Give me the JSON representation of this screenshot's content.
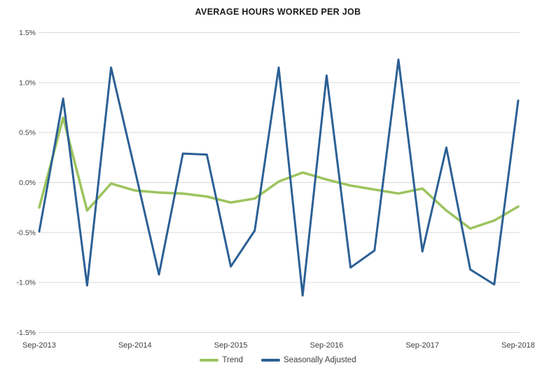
{
  "chart_data": {
    "type": "line",
    "title": "AVERAGE HOURS WORKED PER JOB",
    "x": [
      "Sep-2013",
      "Dec-2013",
      "Mar-2014",
      "Jun-2014",
      "Sep-2014",
      "Dec-2014",
      "Mar-2015",
      "Jun-2015",
      "Sep-2015",
      "Dec-2015",
      "Mar-2016",
      "Jun-2016",
      "Sep-2016",
      "Dec-2016",
      "Mar-2017",
      "Jun-2017",
      "Sep-2017",
      "Dec-2017",
      "Mar-2018",
      "Jun-2018",
      "Sep-2018"
    ],
    "x_tick_labels": [
      "Sep-2013",
      "Sep-2014",
      "Sep-2015",
      "Sep-2016",
      "Sep-2017",
      "Sep-2018"
    ],
    "y_ticks": [
      {
        "label": "1.5%",
        "value": 1.5
      },
      {
        "label": "1.0%",
        "value": 1.0
      },
      {
        "label": "0.5%",
        "value": 0.5
      },
      {
        "label": "0.0%",
        "value": 0.0
      },
      {
        "label": "-0.5%",
        "value": -0.5
      },
      {
        "label": "-1.0%",
        "value": -1.0
      },
      {
        "label": "-1.5%",
        "value": -1.5
      }
    ],
    "ylim": [
      -1.5,
      1.5
    ],
    "unit": "%",
    "grid": "horizontal-only",
    "legend_position": "bottom-center",
    "series": [
      {
        "name": "Trend",
        "color": "#9cc45e",
        "values": [
          -0.25,
          0.65,
          -0.28,
          -0.01,
          -0.08,
          -0.1,
          -0.11,
          -0.14,
          -0.2,
          -0.16,
          0.01,
          0.1,
          0.03,
          -0.03,
          -0.07,
          -0.11,
          -0.06,
          -0.28,
          -0.46,
          -0.38,
          -0.24
        ]
      },
      {
        "name": "Seasonally Adjusted",
        "color": "#2c6095",
        "values": [
          -0.49,
          0.84,
          -1.03,
          1.15,
          0.12,
          -0.92,
          0.29,
          0.28,
          -0.84,
          -0.48,
          1.15,
          -1.13,
          1.07,
          -0.85,
          -0.68,
          1.23,
          -0.69,
          0.35,
          -0.87,
          -1.02,
          0.82
        ]
      }
    ],
    "colors": {
      "gridline": "#d9d9d9",
      "tick_text": "#404040",
      "title_text": "#1a1a1a",
      "background": "#ffffff"
    }
  }
}
